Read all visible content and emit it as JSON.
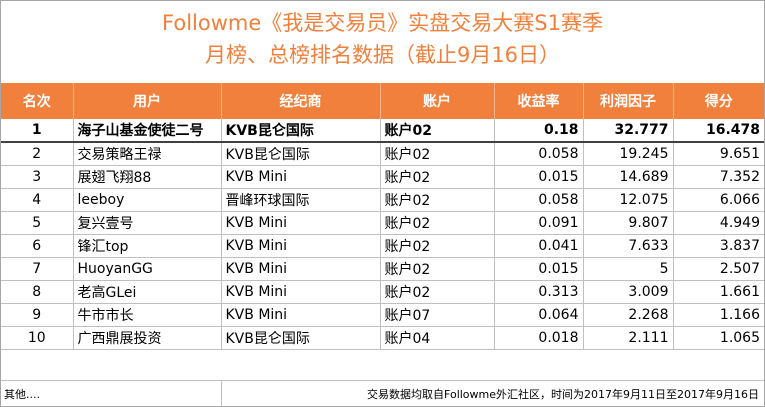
{
  "title": {
    "line1": "Followme《我是交易员》实盘交易大赛S1赛季",
    "line2": "月榜、总榜排名数据（截止9月16日）"
  },
  "table": {
    "headers": [
      "名次",
      "用户",
      "经纪商",
      "账户",
      "收益率",
      "利润因子",
      "得分"
    ],
    "rows": [
      [
        "1",
        "海子山基金使徒二号",
        "KVB昆仑国际",
        "账户02",
        "0.18",
        "32.777",
        "16.478"
      ],
      [
        "2",
        "交易策略王禄",
        "KVB昆仑国际",
        "账户02",
        "0.058",
        "19.245",
        "9.651"
      ],
      [
        "3",
        "展翅飞翔88",
        "KVB Mini",
        "账户02",
        "0.015",
        "14.689",
        "7.352"
      ],
      [
        "4",
        "leeboy",
        "晋峰环球国际",
        "账户02",
        "0.058",
        "12.075",
        "6.066"
      ],
      [
        "5",
        "复兴壹号",
        "KVB Mini",
        "账户02",
        "0.091",
        "9.807",
        "4.949"
      ],
      [
        "6",
        "锋汇top",
        "KVB Mini",
        "账户02",
        "0.041",
        "7.633",
        "3.837"
      ],
      [
        "7",
        "HuoyanGG",
        "KVB Mini",
        "账户02",
        "0.015",
        "5",
        "2.507"
      ],
      [
        "8",
        "老高GLei",
        "KVB Mini",
        "账户02",
        "0.313",
        "3.009",
        "1.661"
      ],
      [
        "9",
        "牛市市长",
        "KVB Mini",
        "账户07",
        "0.064",
        "2.268",
        "1.166"
      ],
      [
        "10",
        "广西鼎展投资",
        "KVB昆仑国际",
        "账户04",
        "0.018",
        "2.111",
        "1.065"
      ]
    ]
  },
  "footer": {
    "left": "其他....",
    "right": "交易数据均取自Followme外汇社区，时间为2017年9月11日至2017年9月16日"
  },
  "colors": {
    "accent": "#f0803c",
    "grid": "#bfbfbf"
  }
}
